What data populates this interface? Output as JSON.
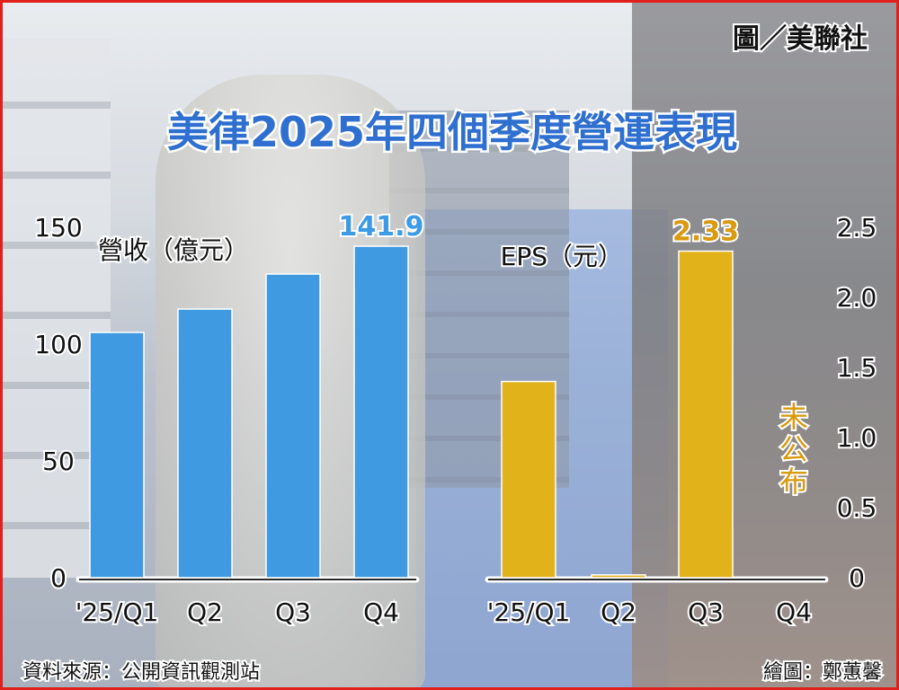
{
  "title": "美律2025年四個季度營運表現",
  "credit": "圖／美聯社",
  "source": "資料來源：公開資訊觀測站",
  "illustrator": "繪圖：鄭蕙馨",
  "colors": {
    "revenue": "#3f9ae2",
    "eps": "#e2b21a",
    "eps_label": "#d99a0e",
    "revenue_label": "#3d9be6",
    "title": "#2f6fcf",
    "frame": "#e0201c"
  },
  "chart_data": [
    {
      "type": "bar",
      "ylabel": "營收（億元）",
      "categories": [
        "'25/Q1",
        "Q2",
        "Q3",
        "Q4"
      ],
      "values": [
        105,
        115,
        130,
        141.9
      ],
      "value_labels": [
        "",
        "",
        "",
        "141.9"
      ],
      "ylim": [
        0,
        150
      ],
      "yticks": [
        "150",
        "100",
        "50",
        "0"
      ]
    },
    {
      "type": "bar",
      "ylabel": "EPS（元）",
      "categories": [
        "'25/Q1",
        "Q2",
        "Q3",
        "Q4"
      ],
      "values": [
        1.4,
        0.02,
        2.33,
        null
      ],
      "value_labels": [
        "",
        "",
        "2.33",
        ""
      ],
      "annotation": "未公布",
      "ylim": [
        0,
        2.5
      ],
      "yticks": [
        "2.5",
        "2.0",
        "1.5",
        "1.0",
        "0.5",
        "0"
      ]
    }
  ]
}
